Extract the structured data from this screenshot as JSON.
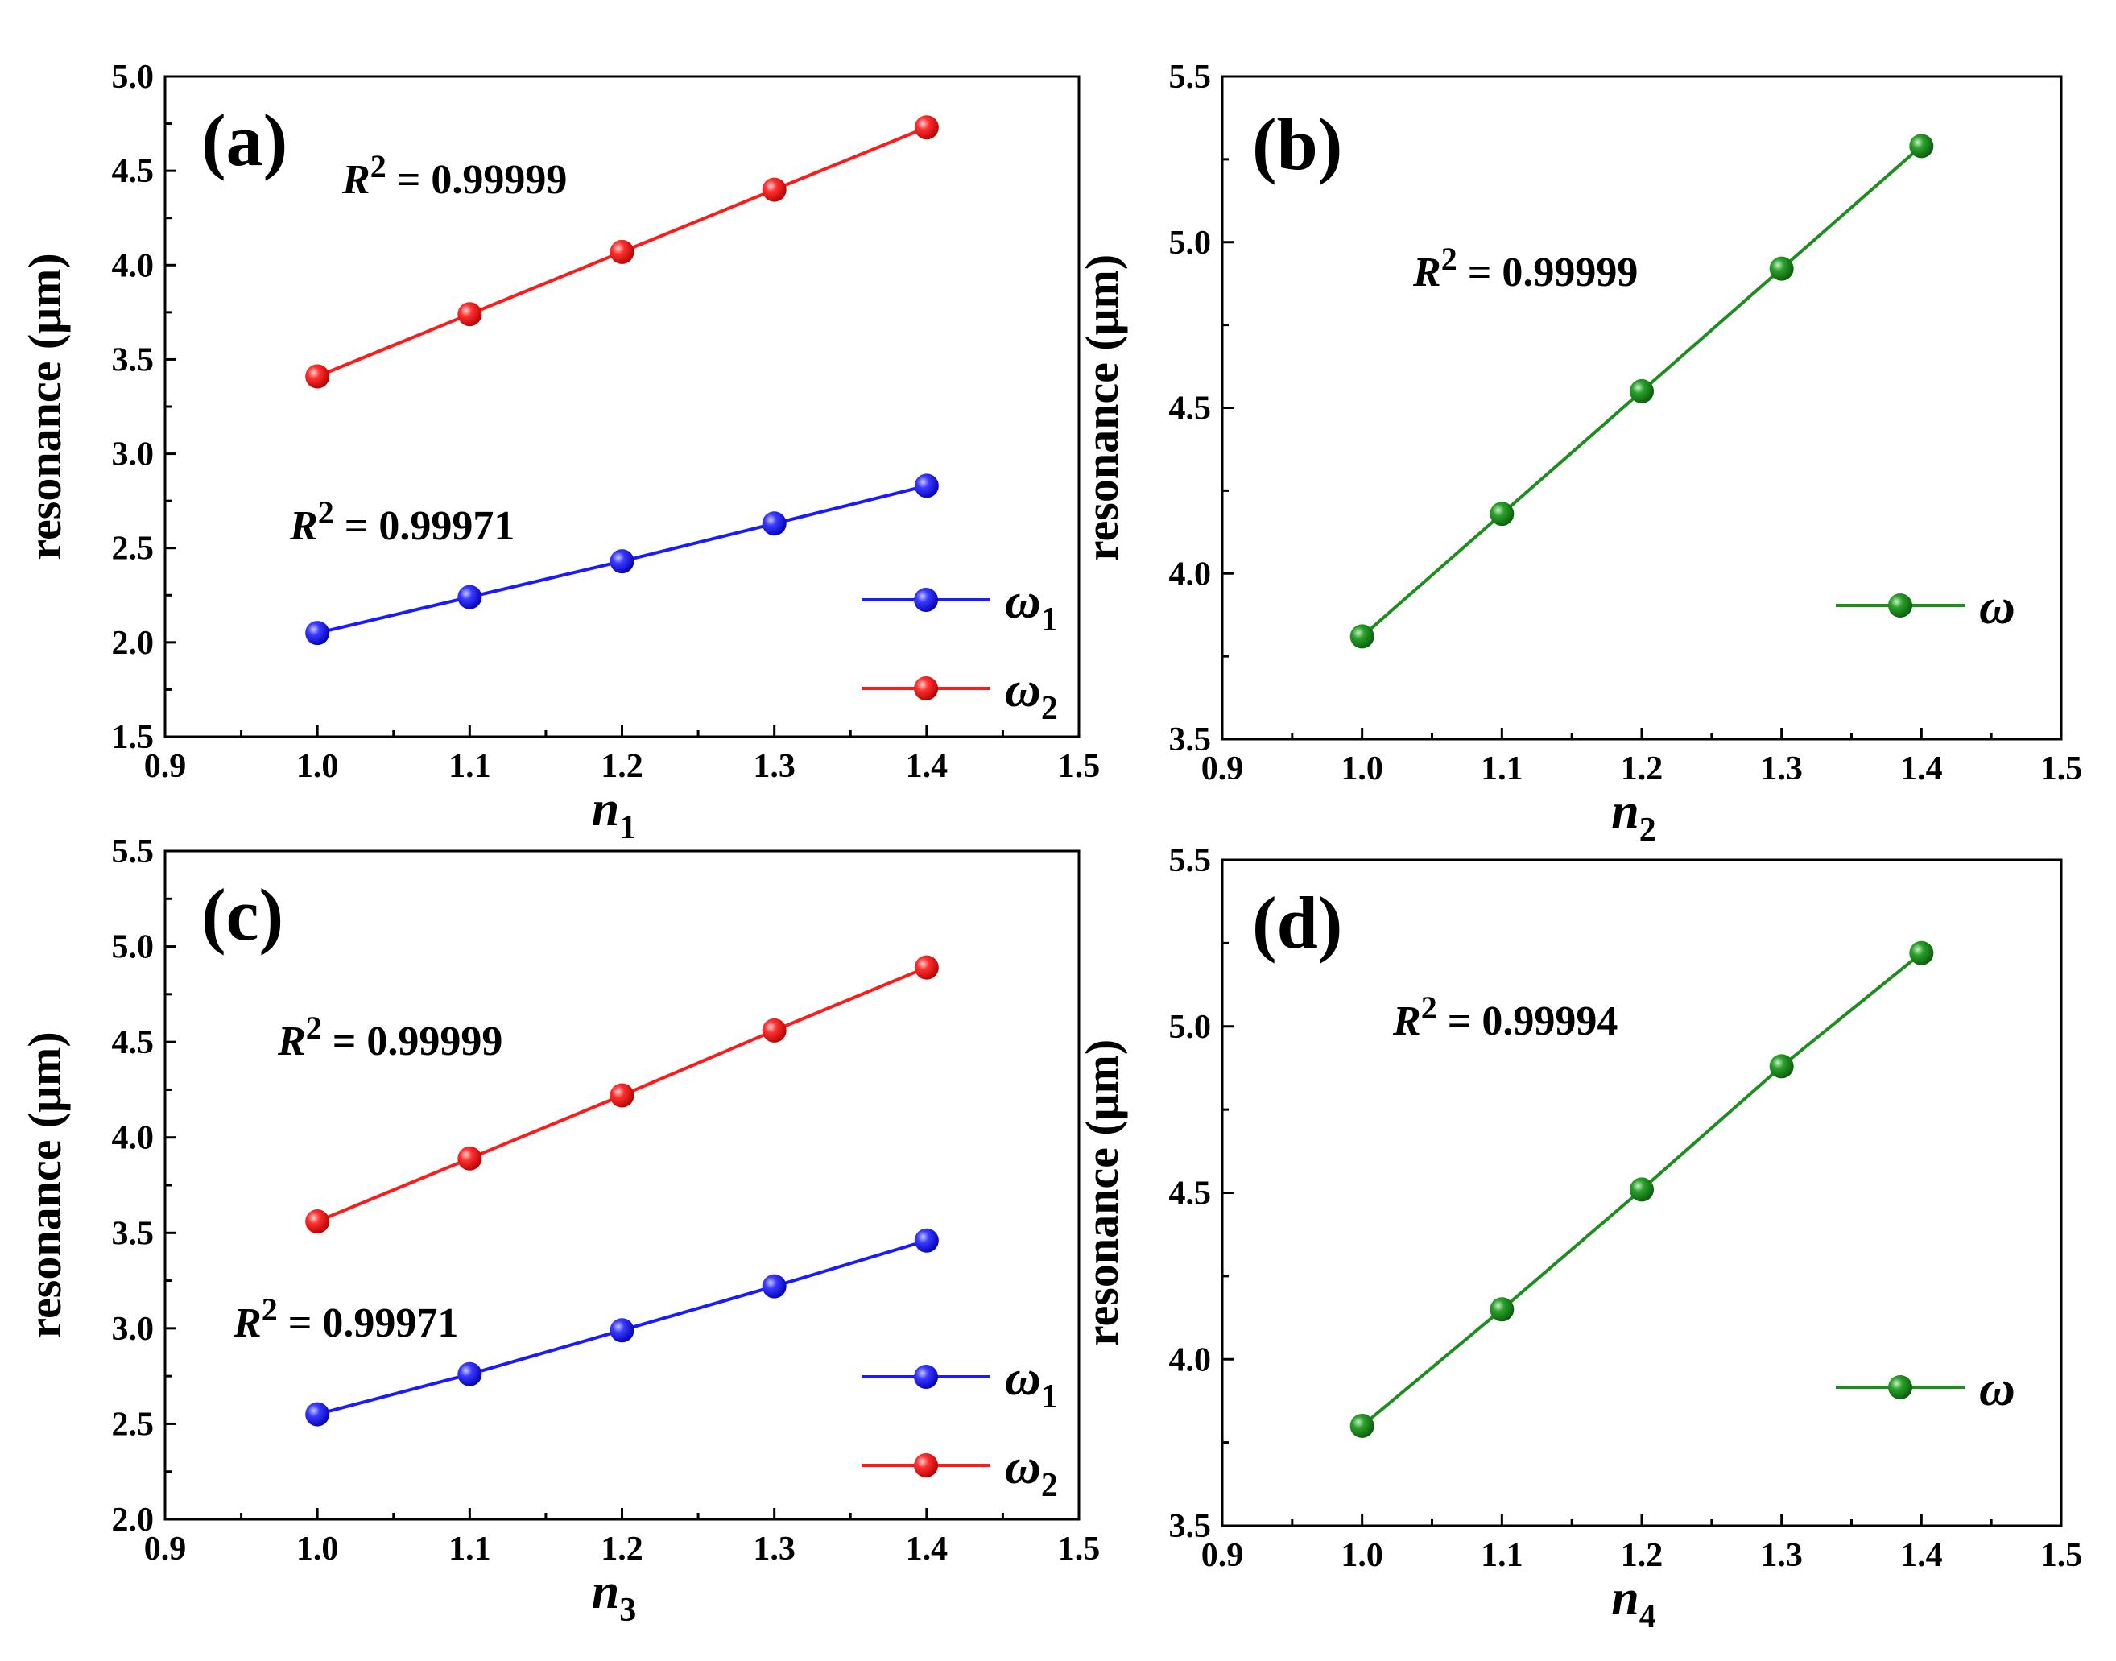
{
  "chart_data": [
    {
      "type": "line",
      "panel_label": "(a)",
      "ylabel": "resonance (μm)",
      "xlabel": {
        "var": "n",
        "sub": "1"
      },
      "xlim": [
        0.9,
        1.5
      ],
      "xticks": [
        "0.9",
        "1.0",
        "1.1",
        "1.2",
        "1.3",
        "1.4",
        "1.5"
      ],
      "ylim": [
        1.5,
        5.0
      ],
      "yticks": [
        "1.5",
        "2.0",
        "2.5",
        "3.0",
        "3.5",
        "4.0",
        "4.5",
        "5.0"
      ],
      "x": [
        1.0,
        1.1,
        1.2,
        1.3,
        1.4
      ],
      "series": [
        {
          "name": "ω",
          "sub": "1",
          "color": "#1a1aff",
          "values": [
            2.05,
            2.24,
            2.43,
            2.63,
            2.83
          ]
        },
        {
          "name": "ω",
          "sub": "2",
          "color": "#ff1a1a",
          "values": [
            3.41,
            3.74,
            4.07,
            4.4,
            4.73
          ]
        }
      ],
      "annotations": [
        {
          "prefix": "R",
          "sup": "2",
          "text": " = 0.99999"
        },
        {
          "prefix": "R",
          "sup": "2",
          "text": " = 0.99971"
        }
      ]
    },
    {
      "type": "line",
      "panel_label": "(b)",
      "ylabel": "resonance (μm)",
      "xlabel": {
        "var": "n",
        "sub": "2"
      },
      "xlim": [
        0.9,
        1.5
      ],
      "xticks": [
        "0.9",
        "1.0",
        "1.1",
        "1.2",
        "1.3",
        "1.4",
        "1.5"
      ],
      "ylim": [
        3.5,
        5.5
      ],
      "yticks": [
        "3.5",
        "4.0",
        "4.5",
        "5.0",
        "5.5"
      ],
      "x": [
        1.0,
        1.1,
        1.2,
        1.3,
        1.4
      ],
      "series": [
        {
          "name": "ω",
          "sub": "",
          "color": "#1e8c1e",
          "values": [
            3.81,
            4.18,
            4.55,
            4.92,
            5.29
          ]
        }
      ],
      "annotations": [
        {
          "prefix": "R",
          "sup": "2",
          "text": " = 0.99999"
        }
      ]
    },
    {
      "type": "line",
      "panel_label": "(c)",
      "ylabel": "resonance (μm)",
      "xlabel": {
        "var": "n",
        "sub": "3"
      },
      "xlim": [
        0.9,
        1.5
      ],
      "xticks": [
        "0.9",
        "1.0",
        "1.1",
        "1.2",
        "1.3",
        "1.4",
        "1.5"
      ],
      "ylim": [
        2.0,
        5.5
      ],
      "yticks": [
        "2.0",
        "2.5",
        "3.0",
        "3.5",
        "4.0",
        "4.5",
        "5.0",
        "5.5"
      ],
      "x": [
        1.0,
        1.1,
        1.2,
        1.3,
        1.4
      ],
      "series": [
        {
          "name": "ω",
          "sub": "1",
          "color": "#1a1aff",
          "values": [
            2.55,
            2.76,
            2.99,
            3.22,
            3.46
          ]
        },
        {
          "name": "ω",
          "sub": "2",
          "color": "#ff1a1a",
          "values": [
            3.56,
            3.89,
            4.22,
            4.56,
            4.89
          ]
        }
      ],
      "annotations": [
        {
          "prefix": "R",
          "sup": "2",
          "text": " = 0.99999"
        },
        {
          "prefix": "R",
          "sup": "2",
          "text": " = 0.99971"
        }
      ]
    },
    {
      "type": "line",
      "panel_label": "(d)",
      "ylabel": "resonance (μm)",
      "xlabel": {
        "var": "n",
        "sub": "4"
      },
      "xlim": [
        0.9,
        1.5
      ],
      "xticks": [
        "0.9",
        "1.0",
        "1.1",
        "1.2",
        "1.3",
        "1.4",
        "1.5"
      ],
      "ylim": [
        3.5,
        5.5
      ],
      "yticks": [
        "3.5",
        "4.0",
        "4.5",
        "5.0",
        "5.5"
      ],
      "x": [
        1.0,
        1.1,
        1.2,
        1.3,
        1.4
      ],
      "series": [
        {
          "name": "ω",
          "sub": "",
          "color": "#1e8c1e",
          "values": [
            3.8,
            4.15,
            4.51,
            4.88,
            5.22
          ]
        }
      ],
      "annotations": [
        {
          "prefix": "R",
          "sup": "2",
          "text": " = 0.99994"
        }
      ]
    }
  ]
}
